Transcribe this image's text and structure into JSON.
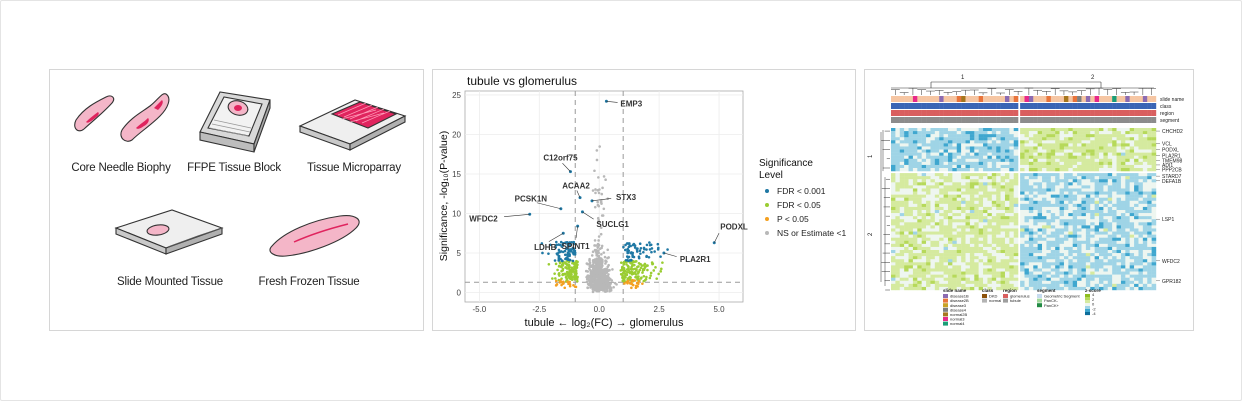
{
  "panel_a": {
    "labels": [
      "Core Needle Biophy",
      "FFPE Tissue Block",
      "Tissue Microparray",
      "Slide Mounted Tissue",
      "Fresh Frozen Tissue"
    ]
  },
  "chart_data": [
    {
      "type": "scatter",
      "title": "tubule vs glomerulus",
      "xlabel": "tubule ← log₂(FC) → glomerulus",
      "ylabel": "Significance, -log₁₀(P-value)",
      "xlim": [
        -5.6,
        6.0
      ],
      "ylim": [
        -1.2,
        25.5
      ],
      "xticks": [
        -5.0,
        -2.5,
        0.0,
        2.5,
        5.0
      ],
      "yticks": [
        0,
        5,
        10,
        15,
        20,
        25
      ],
      "xtick_labels": [
        "-5.0",
        "-2.5",
        "0.0",
        "2.5",
        "5.0"
      ],
      "ytick_labels": [
        "0",
        "5",
        "10",
        "15",
        "20",
        "25"
      ],
      "grid": true,
      "threshold_lines": {
        "x": [
          -1,
          1
        ],
        "y": 1.3
      },
      "legend": {
        "title": "Significance\nLevel",
        "placement": "right",
        "entries": [
          {
            "label": "FDR < 0.001",
            "color": "#1f78a4"
          },
          {
            "label": "FDR < 0.05",
            "color": "#9acd32"
          },
          {
            "label": "P < 0.05",
            "color": "#f4a020"
          },
          {
            "label": "NS or Estimate <1",
            "color": "#b8b8b8"
          }
        ]
      },
      "labeled_genes": [
        {
          "label": "EMP3",
          "x": 0.3,
          "y": 24.2
        },
        {
          "label": "C12orf75",
          "x": -1.2,
          "y": 15.3
        },
        {
          "label": "ACAA2",
          "x": -0.8,
          "y": 12.0
        },
        {
          "label": "STX3",
          "x": -0.3,
          "y": 11.6
        },
        {
          "label": "PCSK1N",
          "x": -1.6,
          "y": 10.6
        },
        {
          "label": "SUCLG1",
          "x": -0.7,
          "y": 10.2
        },
        {
          "label": "WFDC2",
          "x": -2.9,
          "y": 9.9
        },
        {
          "label": "SPINT1",
          "x": -0.9,
          "y": 8.4
        },
        {
          "label": "LDHB",
          "x": -1.5,
          "y": 7.5
        },
        {
          "label": "PODXL",
          "x": 4.8,
          "y": 6.3
        },
        {
          "label": "PLA2R1",
          "x": 2.7,
          "y": 5.0
        }
      ]
    },
    {
      "type": "heatmap",
      "column_clusters": [
        "1",
        "2"
      ],
      "row_clusters": [
        "1",
        "2"
      ],
      "annotation_tracks": [
        "slide name",
        "class",
        "region",
        "segment"
      ],
      "row_labels": [
        "CHCHD2",
        "VCL",
        "PODXL",
        "PLA2R1",
        "TMEM98",
        "ADI1",
        "PPP2CB",
        "STARD7",
        "DEFA1B",
        "LSP1",
        "WFDC2",
        "GPR182"
      ],
      "legends": {
        "slide_name": {
          "title": "slide name",
          "entries": [
            "disease1B",
            "disease2B",
            "disease3",
            "disease4",
            "normal2B",
            "normal3",
            "normal4"
          ],
          "colors": [
            "#8c6bb1",
            "#e8743b",
            "#c9a227",
            "#7f7f7f",
            "#a6761d",
            "#e7298a",
            "#1b9e77"
          ]
        },
        "class": {
          "title": "class",
          "entries": [
            "DKD",
            "normal"
          ],
          "colors": [
            "#8c510a",
            "#b3b3b3"
          ]
        },
        "region": {
          "title": "region",
          "entries": [
            "glomerulus",
            "tubule"
          ],
          "colors": [
            "#d95f5f",
            "#9e9e9e"
          ]
        },
        "segment": {
          "title": "segment",
          "entries": [
            "Geometric Segment",
            "PanCK-",
            "PanCK+"
          ],
          "colors": [
            "#c6dbef",
            "#a1d99b",
            "#238b45"
          ]
        },
        "z_score": {
          "title": "z-score",
          "ticks": [
            "4",
            "2",
            "0",
            "-2",
            "-4"
          ]
        }
      }
    }
  ]
}
